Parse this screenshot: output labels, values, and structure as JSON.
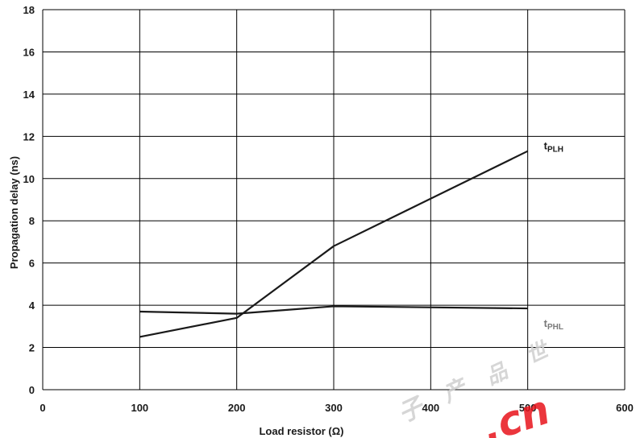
{
  "chart_data": {
    "type": "line",
    "xlabel": "Load resistor (Ω)",
    "ylabel": "Propagation delay (ns)",
    "xlim": [
      0,
      600
    ],
    "ylim": [
      0,
      18
    ],
    "xticks": [
      0,
      100,
      200,
      300,
      400,
      500,
      600
    ],
    "yticks": [
      0,
      2,
      4,
      6,
      8,
      10,
      12,
      14,
      16,
      18
    ],
    "grid": true,
    "series": [
      {
        "name": "tPLH",
        "name_main": "t",
        "name_sub": "PLH",
        "color": "#1a1a1a",
        "x": [
          100,
          200,
          300,
          500
        ],
        "y": [
          2.5,
          3.4,
          6.8,
          11.3
        ]
      },
      {
        "name": "tPHL",
        "name_main": "t",
        "name_sub": "PHL",
        "color": "#7a7a7a",
        "x": [
          100,
          200,
          300,
          500
        ],
        "y": [
          3.7,
          3.6,
          3.95,
          3.85
        ]
      }
    ]
  },
  "watermark": {
    "text": ".cn",
    "color": "#e8141c"
  }
}
